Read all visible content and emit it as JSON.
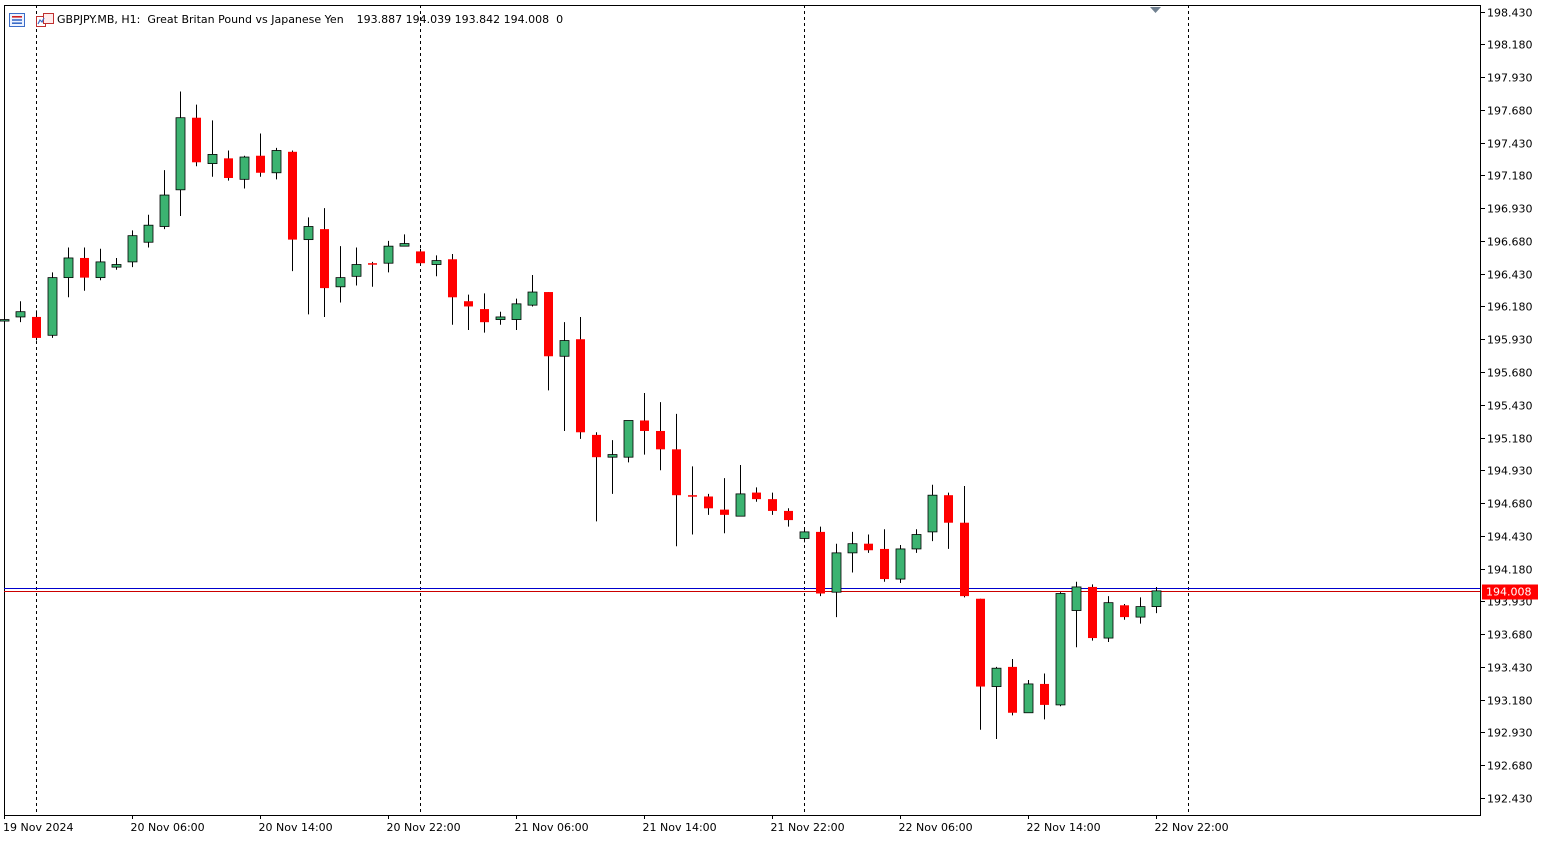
{
  "header": {
    "symbol_text": "GBPJPY.MB, H1:  Great Britan Pound vs Japanese Yen",
    "ohlc_text": "193.887 194.039 193.842 194.008  0"
  },
  "colors": {
    "bull": "#3cb371",
    "bear": "#ff0000",
    "wick": "#000000",
    "bid_line": "#0000cd",
    "ask_line": "#cc0000",
    "grid": "#000000",
    "price_label_bg": "#ff0000"
  },
  "current_price_label": "194.008",
  "chart_data": {
    "type": "candlestick",
    "symbol": "GBPJPY.MB",
    "timeframe": "H1",
    "y_axis": {
      "min": 192.3,
      "max": 198.48,
      "ticks": [
        "198.430",
        "198.180",
        "197.930",
        "197.680",
        "197.430",
        "197.180",
        "196.930",
        "196.680",
        "196.430",
        "196.180",
        "195.930",
        "195.680",
        "195.430",
        "195.180",
        "194.930",
        "194.680",
        "194.430",
        "194.180",
        "193.930",
        "193.680",
        "193.430",
        "193.180",
        "192.930",
        "192.680",
        "192.430"
      ]
    },
    "x_axis": {
      "labels": [
        "19 Nov 2024",
        "20 Nov 06:00",
        "20 Nov 14:00",
        "20 Nov 22:00",
        "21 Nov 06:00",
        "21 Nov 14:00",
        "21 Nov 22:00",
        "22 Nov 06:00",
        "22 Nov 14:00",
        "22 Nov 22:00"
      ],
      "label_index": [
        0,
        8,
        16,
        24,
        32,
        40,
        48,
        56,
        64,
        72
      ],
      "day_separators": [
        2,
        26,
        50,
        74
      ]
    },
    "bid": 194.008,
    "ask": 194.03,
    "candles": [
      [
        196.08,
        196.1,
        196.06,
        196.08
      ],
      [
        196.1,
        196.22,
        196.06,
        196.14
      ],
      [
        196.1,
        196.15,
        195.92,
        195.94
      ],
      [
        195.96,
        196.44,
        195.94,
        196.4
      ],
      [
        196.4,
        196.63,
        196.25,
        196.55
      ],
      [
        196.55,
        196.63,
        196.3,
        196.4
      ],
      [
        196.4,
        196.62,
        196.38,
        196.52
      ],
      [
        196.48,
        196.55,
        196.46,
        196.5
      ],
      [
        196.52,
        196.76,
        196.48,
        196.72
      ],
      [
        196.67,
        196.88,
        196.63,
        196.8
      ],
      [
        196.79,
        197.22,
        196.77,
        197.03
      ],
      [
        197.07,
        197.82,
        196.87,
        197.62
      ],
      [
        197.62,
        197.72,
        197.25,
        197.28
      ],
      [
        197.27,
        197.6,
        197.17,
        197.34
      ],
      [
        197.31,
        197.37,
        197.14,
        197.16
      ],
      [
        197.15,
        197.33,
        197.08,
        197.32
      ],
      [
        197.33,
        197.5,
        197.17,
        197.2
      ],
      [
        197.2,
        197.39,
        197.15,
        197.37
      ],
      [
        197.36,
        197.37,
        196.45,
        196.69
      ],
      [
        196.69,
        196.86,
        196.12,
        196.79
      ],
      [
        196.77,
        196.93,
        196.1,
        196.32
      ],
      [
        196.33,
        196.64,
        196.21,
        196.4
      ],
      [
        196.41,
        196.63,
        196.34,
        196.5
      ],
      [
        196.51,
        196.52,
        196.33,
        196.5
      ],
      [
        196.51,
        196.68,
        196.44,
        196.64
      ],
      [
        196.64,
        196.73,
        196.65,
        196.66
      ],
      [
        196.6,
        196.62,
        196.5,
        196.51
      ],
      [
        196.5,
        196.57,
        196.41,
        196.53
      ],
      [
        196.54,
        196.58,
        196.04,
        196.25
      ],
      [
        196.22,
        196.27,
        196.0,
        196.18
      ],
      [
        196.16,
        196.28,
        195.98,
        196.06
      ],
      [
        196.08,
        196.14,
        196.04,
        196.1
      ],
      [
        196.08,
        196.24,
        196.0,
        196.2
      ],
      [
        196.19,
        196.42,
        196.18,
        196.29
      ],
      [
        196.29,
        196.29,
        195.54,
        195.8
      ],
      [
        195.8,
        196.06,
        195.23,
        195.92
      ],
      [
        195.93,
        196.1,
        195.17,
        195.22
      ],
      [
        195.2,
        195.22,
        194.54,
        195.03
      ],
      [
        195.03,
        195.16,
        194.75,
        195.05
      ],
      [
        195.03,
        195.3,
        194.99,
        195.31
      ],
      [
        195.31,
        195.52,
        195.05,
        195.23
      ],
      [
        195.23,
        195.45,
        194.93,
        195.09
      ],
      [
        195.09,
        195.36,
        194.35,
        194.74
      ],
      [
        194.74,
        194.96,
        194.44,
        194.73
      ],
      [
        194.73,
        194.75,
        194.59,
        194.64
      ],
      [
        194.63,
        194.87,
        194.45,
        194.59
      ],
      [
        194.58,
        194.97,
        194.58,
        194.75
      ],
      [
        194.76,
        194.8,
        194.69,
        194.71
      ],
      [
        194.71,
        194.76,
        194.59,
        194.62
      ],
      [
        194.62,
        194.64,
        194.5,
        194.55
      ],
      [
        194.41,
        194.49,
        194.38,
        194.46
      ],
      [
        194.46,
        194.5,
        193.97,
        193.99
      ],
      [
        194.0,
        194.37,
        193.81,
        194.3
      ],
      [
        194.3,
        194.46,
        194.15,
        194.37
      ],
      [
        194.37,
        194.44,
        194.3,
        194.32
      ],
      [
        194.33,
        194.48,
        194.08,
        194.1
      ],
      [
        194.1,
        194.36,
        194.07,
        194.33
      ],
      [
        194.33,
        194.48,
        194.3,
        194.44
      ],
      [
        194.46,
        194.82,
        194.39,
        194.74
      ],
      [
        194.74,
        194.76,
        194.33,
        194.53
      ],
      [
        194.53,
        194.81,
        193.96,
        193.97
      ],
      [
        193.95,
        193.95,
        192.95,
        193.28
      ],
      [
        193.28,
        193.43,
        192.88,
        193.42
      ],
      [
        193.43,
        193.49,
        193.06,
        193.08
      ],
      [
        193.08,
        193.33,
        193.08,
        193.3
      ],
      [
        193.3,
        193.38,
        193.03,
        193.14
      ],
      [
        193.14,
        194.0,
        193.13,
        193.99
      ],
      [
        193.86,
        194.08,
        193.58,
        194.04
      ],
      [
        194.04,
        194.06,
        193.63,
        193.65
      ],
      [
        193.65,
        193.97,
        193.62,
        193.92
      ],
      [
        193.9,
        193.91,
        193.79,
        193.81
      ],
      [
        193.81,
        193.96,
        193.76,
        193.89
      ],
      [
        193.89,
        194.04,
        193.84,
        194.01
      ]
    ]
  }
}
